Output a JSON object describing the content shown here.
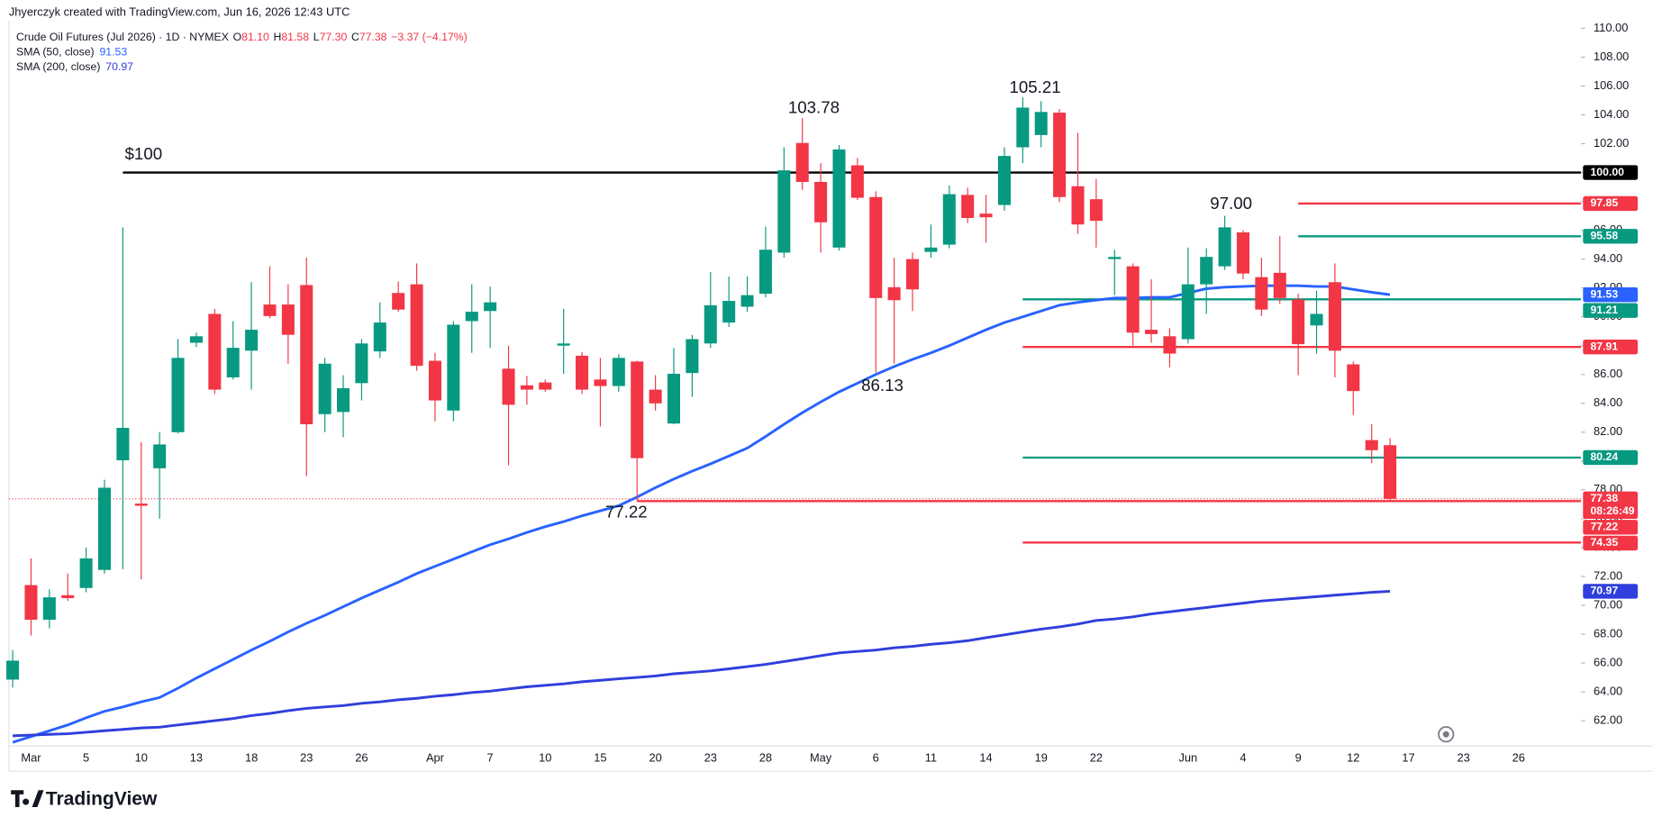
{
  "chart_data": {
    "type": "candlestick",
    "watermark": "Jhyerczyk created with TradingView.com, Jun 16, 2026 12:43 UTC",
    "symbol": "Crude Oil Futures (Jul 2026) · 1D · NYMEX",
    "header": [
      {
        "key": "O",
        "value": "81.10"
      },
      {
        "key": "H",
        "value": "81.58"
      },
      {
        "key": "L",
        "value": "77.30"
      },
      {
        "key": "C",
        "value": "77.38"
      }
    ],
    "change": "−3.37 (−4.17%)",
    "brand": "TradingView",
    "up_color": "#089981",
    "down_color": "#f23645",
    "categories": [
      null,
      "Mar",
      null,
      null,
      "5",
      null,
      null,
      "10",
      null,
      null,
      "13",
      null,
      null,
      "18",
      null,
      null,
      "23",
      null,
      null,
      "26",
      null,
      null,
      null,
      "Apr",
      null,
      null,
      "7",
      null,
      null,
      "10",
      null,
      null,
      "15",
      null,
      null,
      "20",
      null,
      null,
      "23",
      null,
      null,
      "28",
      null,
      null,
      "May",
      null,
      null,
      "6",
      null,
      null,
      "11",
      null,
      null,
      "14",
      null,
      null,
      "19",
      null,
      null,
      "22",
      null,
      null,
      null,
      null,
      "Jun",
      null,
      null,
      "4",
      null,
      null,
      "9",
      null,
      null,
      "12",
      null,
      null,
      "17",
      null,
      null,
      "23",
      null,
      null,
      "26"
    ],
    "open": [
      64.85,
      71.4,
      69.0,
      70.7,
      71.2,
      72.45,
      80.05,
      77.05,
      79.5,
      82.0,
      88.2,
      90.2,
      85.8,
      87.65,
      90.85,
      90.85,
      92.2,
      83.25,
      83.4,
      85.4,
      87.6,
      91.65,
      92.25,
      86.95,
      83.5,
      89.7,
      90.4,
      86.4,
      85.25,
      85.45,
      88.0,
      87.3,
      85.65,
      85.2,
      86.9,
      84.95,
      82.6,
      86.1,
      88.15,
      89.6,
      90.7,
      91.6,
      94.45,
      102.05,
      99.35,
      94.8,
      100.5,
      98.3,
      92.05,
      94.0,
      94.5,
      95.0,
      98.45,
      97.15,
      97.75,
      101.75,
      102.6,
      104.15,
      99.05,
      98.15,
      94.0,
      93.5,
      89.1,
      88.65,
      88.45,
      92.25,
      93.5,
      95.85,
      92.75,
      93.05,
      91.2,
      89.4,
      92.4,
      86.7,
      81.45,
      81.1,
      null,
      null,
      null,
      null,
      null,
      null,
      null
    ],
    "high": [
      66.9,
      73.25,
      71.1,
      72.2,
      74.0,
      78.7,
      96.2,
      81.3,
      82.0,
      88.45,
      88.9,
      90.55,
      89.7,
      92.4,
      93.5,
      92.25,
      94.1,
      87.15,
      85.95,
      88.45,
      91.0,
      92.45,
      93.7,
      87.5,
      89.7,
      92.25,
      92.1,
      88.0,
      85.9,
      85.65,
      90.55,
      87.55,
      87.15,
      87.4,
      86.95,
      85.95,
      87.85,
      88.75,
      93.1,
      92.8,
      92.8,
      96.25,
      101.75,
      103.78,
      100.65,
      101.9,
      101.0,
      98.7,
      94.1,
      94.45,
      96.4,
      99.1,
      98.95,
      98.45,
      101.75,
      105.21,
      104.95,
      104.4,
      102.75,
      99.55,
      94.65,
      93.7,
      92.6,
      89.2,
      94.8,
      94.75,
      97.0,
      96.0,
      94.1,
      95.6,
      91.6,
      91.8,
      93.7,
      86.9,
      82.55,
      81.58,
      null,
      null,
      null,
      null,
      null,
      null,
      null
    ],
    "low": [
      64.3,
      67.9,
      68.4,
      70.3,
      70.9,
      72.2,
      72.5,
      71.8,
      76.0,
      81.9,
      87.9,
      84.65,
      85.65,
      84.95,
      89.9,
      86.75,
      78.95,
      82.0,
      81.65,
      84.2,
      87.15,
      90.35,
      86.25,
      82.75,
      82.75,
      87.5,
      87.85,
      79.7,
      83.9,
      84.8,
      86.05,
      84.65,
      82.4,
      84.8,
      77.22,
      83.5,
      82.55,
      84.45,
      87.85,
      89.3,
      90.35,
      91.35,
      94.1,
      98.8,
      94.45,
      94.6,
      98.1,
      86.13,
      86.75,
      90.4,
      94.1,
      94.75,
      96.5,
      95.15,
      97.35,
      100.65,
      101.75,
      97.95,
      95.75,
      94.8,
      91.5,
      88.0,
      88.2,
      86.5,
      88.15,
      90.2,
      93.25,
      92.6,
      90.05,
      90.9,
      85.95,
      87.45,
      85.8,
      83.2,
      79.85,
      77.3,
      null,
      null,
      null,
      null,
      null,
      null,
      null
    ],
    "close": [
      66.16,
      69.0,
      70.55,
      70.5,
      73.25,
      78.15,
      82.3,
      76.9,
      81.15,
      87.15,
      88.65,
      84.95,
      87.85,
      89.1,
      90.05,
      88.75,
      82.55,
      86.75,
      85.05,
      88.15,
      89.6,
      90.5,
      86.6,
      84.2,
      89.45,
      90.35,
      91.0,
      83.9,
      84.95,
      84.95,
      88.15,
      84.95,
      85.2,
      87.15,
      80.2,
      84.0,
      86.05,
      88.45,
      90.8,
      91.1,
      91.5,
      94.65,
      100.15,
      99.35,
      96.55,
      101.6,
      98.25,
      91.3,
      91.15,
      91.9,
      94.8,
      98.5,
      96.85,
      96.9,
      101.15,
      104.5,
      104.2,
      98.3,
      96.4,
      96.65,
      94.15,
      88.9,
      88.8,
      87.45,
      92.25,
      94.15,
      96.2,
      93.0,
      90.5,
      91.3,
      88.1,
      90.2,
      87.65,
      84.85,
      80.75,
      77.38,
      null,
      null,
      null,
      null,
      null,
      null,
      null
    ],
    "indicators": [
      {
        "name": "SMA (50, close)",
        "label": "91.53",
        "color": "#2962ff",
        "values": [
          60.5,
          60.9,
          61.3,
          61.7,
          62.2,
          62.65,
          62.95,
          63.3,
          63.6,
          64.25,
          64.95,
          65.6,
          66.25,
          66.9,
          67.5,
          68.15,
          68.75,
          69.3,
          69.9,
          70.5,
          71.05,
          71.6,
          72.2,
          72.7,
          73.2,
          73.7,
          74.2,
          74.6,
          75.05,
          75.45,
          75.8,
          76.2,
          76.55,
          76.9,
          77.5,
          78.15,
          78.75,
          79.3,
          79.8,
          80.35,
          80.9,
          81.7,
          82.55,
          83.35,
          84.1,
          84.8,
          85.4,
          86.0,
          86.55,
          87.05,
          87.5,
          88.0,
          88.55,
          89.1,
          89.6,
          90.0,
          90.4,
          90.8,
          91.0,
          91.15,
          91.3,
          91.3,
          91.35,
          91.35,
          91.65,
          91.95,
          92.05,
          92.1,
          92.15,
          92.15,
          92.15,
          92.1,
          92.1,
          91.9,
          91.7,
          91.53,
          null,
          null,
          null,
          null,
          null,
          null,
          null
        ]
      },
      {
        "name": "SMA (200, close)",
        "label": "70.97",
        "color": "#2f3fdc",
        "values": [
          60.95,
          61.0,
          61.05,
          61.1,
          61.2,
          61.3,
          61.4,
          61.5,
          61.55,
          61.7,
          61.85,
          62.0,
          62.15,
          62.35,
          62.5,
          62.7,
          62.85,
          62.95,
          63.05,
          63.2,
          63.3,
          63.45,
          63.55,
          63.7,
          63.8,
          63.95,
          64.05,
          64.2,
          64.35,
          64.45,
          64.55,
          64.7,
          64.8,
          64.9,
          65.0,
          65.1,
          65.25,
          65.35,
          65.45,
          65.6,
          65.75,
          65.9,
          66.1,
          66.3,
          66.5,
          66.7,
          66.8,
          66.9,
          67.05,
          67.15,
          67.3,
          67.4,
          67.55,
          67.75,
          67.95,
          68.15,
          68.35,
          68.5,
          68.7,
          68.95,
          69.05,
          69.2,
          69.4,
          69.55,
          69.7,
          69.85,
          70.0,
          70.15,
          70.3,
          70.4,
          70.5,
          70.6,
          70.7,
          70.8,
          70.9,
          70.97,
          null,
          null,
          null,
          null,
          null,
          null,
          null
        ]
      }
    ],
    "levels": [
      {
        "value": 100,
        "label": "100.00",
        "color": "#000000"
      },
      {
        "value": 97.85,
        "label": "97.85",
        "color": "#f23645"
      },
      {
        "value": 95.58,
        "label": "95.58",
        "color": "#089981"
      },
      {
        "value": 91.21,
        "label": "91.21",
        "color": "#089981"
      },
      {
        "value": 87.91,
        "label": "87.91",
        "color": "#f23645"
      },
      {
        "value": 80.24,
        "label": "80.24",
        "color": "#089981"
      },
      {
        "value": 77.22,
        "label": "77.22",
        "color": "#f23645"
      },
      {
        "value": 74.35,
        "label": "74.35",
        "color": "#f23645"
      }
    ],
    "last_price": {
      "value": 77.38,
      "label": "77.38",
      "countdown": "08:26:49",
      "color": "#f23645"
    },
    "annotations": [
      "$100",
      "103.78",
      "105.21",
      "97.00",
      "86.13",
      "77.22"
    ],
    "ylim": [
      60.25,
      110.5
    ],
    "yticks": [
      {
        "value": 62,
        "label": "62.00"
      },
      {
        "value": 64,
        "label": "64.00"
      },
      {
        "value": 66,
        "label": "66.00"
      },
      {
        "value": 68,
        "label": "68.00"
      },
      {
        "value": 70,
        "label": "70.00"
      },
      {
        "value": 72,
        "label": "72.00"
      },
      {
        "value": 74,
        "label": "74.00"
      },
      {
        "value": 76,
        "label": "76.00"
      },
      {
        "value": 78,
        "label": "78.00"
      },
      {
        "value": 80,
        "label": "80.00"
      },
      {
        "value": 82,
        "label": "82.00"
      },
      {
        "value": 84,
        "label": "84.00"
      },
      {
        "value": 86,
        "label": "86.00"
      },
      {
        "value": 88,
        "label": "88.00"
      },
      {
        "value": 90,
        "label": "90.00"
      },
      {
        "value": 92,
        "label": "92.00"
      },
      {
        "value": 94,
        "label": "94.00"
      },
      {
        "value": 96,
        "label": "96.00"
      },
      {
        "value": 98,
        "label": "98.00"
      },
      {
        "value": 100,
        "label": "100.00"
      },
      {
        "value": 102,
        "label": "102.00"
      },
      {
        "value": 104,
        "label": "104.00"
      },
      {
        "value": 106,
        "label": "106.00"
      },
      {
        "value": 108,
        "label": "108.00"
      },
      {
        "value": 110,
        "label": "110.00"
      }
    ]
  }
}
